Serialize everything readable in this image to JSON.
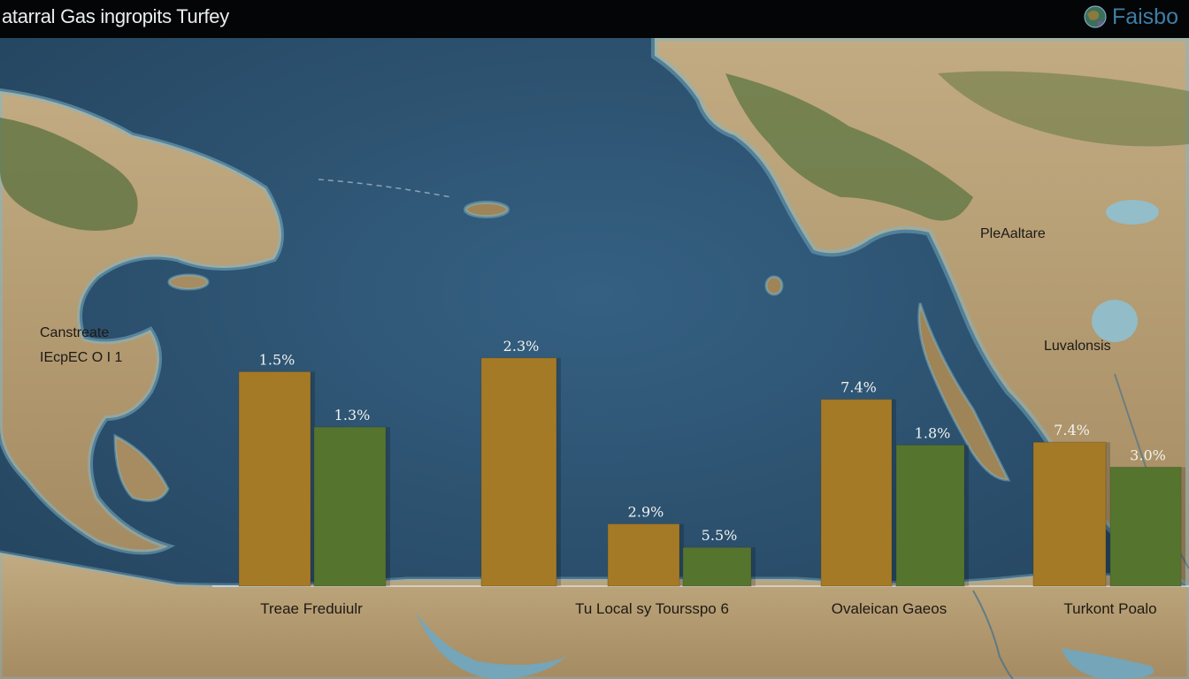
{
  "header": {
    "title": "atarral Gas ingropits Turfey",
    "brand": "Faisbo",
    "brand_icon": "globe-icon"
  },
  "map_labels": [
    {
      "id": "place-pleaaltarre",
      "text": "PleAaltare"
    },
    {
      "id": "place-canstreate",
      "text": "Canstreate"
    },
    {
      "id": "place-iecpeco",
      "text": "IEcpEC O I 1"
    },
    {
      "id": "place-luvalonsis",
      "text": "Luvalonsis"
    }
  ],
  "colors": {
    "series_1": "#a57a26",
    "series_2": "#55752f",
    "ocean": "#2f5470",
    "land": "#b49c74",
    "header_bg": "#030506",
    "brand": "#3f7ea6"
  },
  "chart_data": {
    "type": "bar",
    "title": "atarral Gas ingropits Turfey",
    "xlabel": "",
    "ylabel": "",
    "categories": [
      "Treae Freduiulr",
      "Tu Local sy Toursspo 6",
      "Ovaleican Gaeos",
      "Turkont Poalo"
    ],
    "series": [
      {
        "values": [
          15.5,
          16.5,
          4.5,
          13.5
        ],
        "labels": [
          "1.5%",
          "2.3%",
          "2.9%",
          "7.4%"
        ]
      },
      {
        "values": [
          11.5,
          null,
          2.8,
          10.2
        ],
        "labels": [
          "1.3%",
          "",
          "5.5%",
          "1.8%"
        ]
      }
    ],
    "extra_bars": [
      {
        "category": "Turkont Poalo",
        "values": [
          10.4,
          8.6
        ],
        "labels": [
          "7.4%",
          "3.0%"
        ]
      }
    ],
    "ylim": [
      0,
      20
    ],
    "grid": false,
    "legend": "none"
  }
}
